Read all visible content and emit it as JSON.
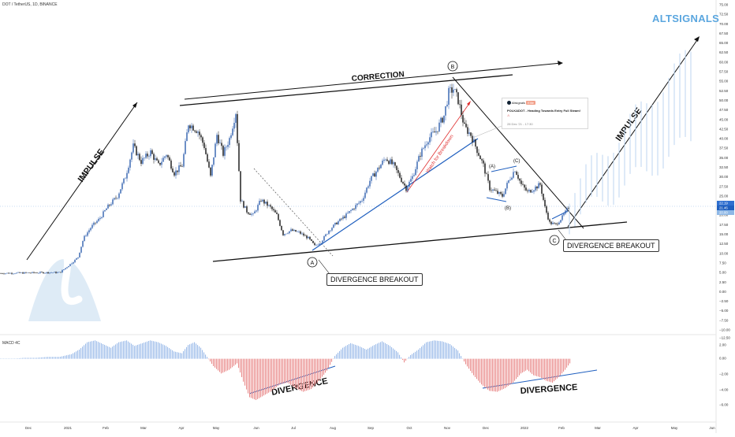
{
  "header": {
    "symbol_line": "DOT / TetherUS, 1D, BINANCE"
  },
  "brand": {
    "name": "ALTSIGNALS",
    "color": "#5aa6df"
  },
  "colors": {
    "up": "#2f5fae",
    "down": "#111111",
    "macd_pos": "#9bbbe9",
    "macd_neg": "#e98a8a",
    "annot_blue": "#1f5fbf",
    "annot_red": "#e03030",
    "watermark": "#c4dbf0"
  },
  "idea_card": {
    "author": "Altsignals",
    "badge": "Elite",
    "title": "POLKADOT - Heading Towards Entry Full Steam!",
    "date": "28 Dec '21 - 17:30"
  },
  "annotations": {
    "impulse_left": "IMPULSE",
    "impulse_right": "IMPULSE",
    "correction": "CORRECTION",
    "watch_for_breakdown": "Watch for Breakdown",
    "point_a": "A",
    "point_b": "B",
    "point_c": "C",
    "sub_a": "(A)",
    "sub_b": "(B)",
    "sub_c": "(C)",
    "divergence_breakout_1": "DIVERGENCE BREAKOUT",
    "divergence_breakout_2": "DIVERGENCE BREAKOUT",
    "divergence_1": "DIVERGENCE",
    "divergence_2": "DIVERGENCE"
  },
  "indicator": {
    "name": "MACD 4C"
  },
  "chart_data": {
    "type": "candlestick",
    "price_axis": {
      "ticks": [
        "75.00",
        "72.50",
        "70.00",
        "67.50",
        "65.00",
        "62.50",
        "60.00",
        "57.50",
        "55.00",
        "52.50",
        "50.00",
        "47.50",
        "45.00",
        "42.50",
        "40.00",
        "37.50",
        "35.00",
        "32.50",
        "30.00",
        "27.50",
        "25.00",
        "22.50",
        "20.00",
        "17.50",
        "15.00",
        "12.50",
        "10.00",
        "7.50",
        "5.00",
        "2.50",
        "0.00",
        "−2.50",
        "−5.00",
        "−7.50",
        "−10.00"
      ],
      "ylim": [
        -10,
        75
      ],
      "current_price_labels": [
        "22.19",
        "21.46",
        "20.00"
      ]
    },
    "macd_axis": {
      "ticks": [
        "−12.50",
        "2.00",
        "0.00",
        "−2.00",
        "−4.00",
        "−6.00"
      ],
      "ylim": [
        -6.3,
        2.2
      ]
    },
    "x_axis": {
      "ticks": [
        "Dec",
        "2021",
        "Feb",
        "Mar",
        "Apr",
        "May",
        "Jun",
        "Jul",
        "Aug",
        "Sep",
        "Oct",
        "Nov",
        "Dec",
        "2022",
        "Feb",
        "Mar",
        "Apr",
        "May",
        "Jun"
      ]
    },
    "price_series": [
      {
        "t": 0,
        "v": 4.8
      },
      {
        "t": 60,
        "v": 5.0
      },
      {
        "t": 75,
        "v": 5.0
      },
      {
        "t": 90,
        "v": 7.5
      },
      {
        "t": 98,
        "v": 9.0
      },
      {
        "t": 105,
        "v": 14.0
      },
      {
        "t": 115,
        "v": 17.0
      },
      {
        "t": 125,
        "v": 19.0
      },
      {
        "t": 135,
        "v": 22.0
      },
      {
        "t": 148,
        "v": 25.0
      },
      {
        "t": 158,
        "v": 30.0
      },
      {
        "t": 168,
        "v": 38.0
      },
      {
        "t": 178,
        "v": 34.0
      },
      {
        "t": 190,
        "v": 36.5
      },
      {
        "t": 200,
        "v": 33.0
      },
      {
        "t": 210,
        "v": 36.0
      },
      {
        "t": 220,
        "v": 31.0
      },
      {
        "t": 230,
        "v": 33.0
      },
      {
        "t": 238,
        "v": 44.0
      },
      {
        "t": 250,
        "v": 42.0
      },
      {
        "t": 258,
        "v": 38.0
      },
      {
        "t": 266,
        "v": 30.0
      },
      {
        "t": 274,
        "v": 41.0
      },
      {
        "t": 282,
        "v": 36.0
      },
      {
        "t": 290,
        "v": 40.0
      },
      {
        "t": 298,
        "v": 47.0
      },
      {
        "t": 304,
        "v": 24.0
      },
      {
        "t": 312,
        "v": 21.0
      },
      {
        "t": 320,
        "v": 20.0
      },
      {
        "t": 330,
        "v": 24.0
      },
      {
        "t": 342,
        "v": 22.0
      },
      {
        "t": 350,
        "v": 20.0
      },
      {
        "t": 358,
        "v": 15.0
      },
      {
        "t": 368,
        "v": 16.0
      },
      {
        "t": 378,
        "v": 15.5
      },
      {
        "t": 390,
        "v": 14.0
      },
      {
        "t": 398,
        "v": 12.0
      },
      {
        "t": 406,
        "v": 13.0
      },
      {
        "t": 416,
        "v": 16.0
      },
      {
        "t": 426,
        "v": 18.0
      },
      {
        "t": 438,
        "v": 20.0
      },
      {
        "t": 448,
        "v": 22.0
      },
      {
        "t": 458,
        "v": 24.0
      },
      {
        "t": 468,
        "v": 29.0
      },
      {
        "t": 478,
        "v": 32.0
      },
      {
        "t": 488,
        "v": 35.0
      },
      {
        "t": 498,
        "v": 33.0
      },
      {
        "t": 506,
        "v": 30.0
      },
      {
        "t": 514,
        "v": 27.0
      },
      {
        "t": 522,
        "v": 30.0
      },
      {
        "t": 532,
        "v": 36.0
      },
      {
        "t": 542,
        "v": 40.0
      },
      {
        "t": 552,
        "v": 42.0
      },
      {
        "t": 562,
        "v": 46.0
      },
      {
        "t": 568,
        "v": 52.0
      },
      {
        "t": 574,
        "v": 53.0
      },
      {
        "t": 580,
        "v": 50.0
      },
      {
        "t": 588,
        "v": 43.0
      },
      {
        "t": 596,
        "v": 41.0
      },
      {
        "t": 604,
        "v": 37.0
      },
      {
        "t": 612,
        "v": 33.0
      },
      {
        "t": 620,
        "v": 27.0
      },
      {
        "t": 628,
        "v": 26.0
      },
      {
        "t": 636,
        "v": 25.0
      },
      {
        "t": 644,
        "v": 29.0
      },
      {
        "t": 652,
        "v": 32.0
      },
      {
        "t": 660,
        "v": 28.0
      },
      {
        "t": 668,
        "v": 26.0
      },
      {
        "t": 676,
        "v": 27.0
      },
      {
        "t": 684,
        "v": 28.0
      },
      {
        "t": 690,
        "v": 22.0
      },
      {
        "t": 696,
        "v": 18.0
      },
      {
        "t": 704,
        "v": 17.5
      },
      {
        "t": 712,
        "v": 19.5
      },
      {
        "t": 720,
        "v": 22.0
      }
    ],
    "macd_series": [
      {
        "t": 0,
        "v": 0.0
      },
      {
        "t": 15,
        "v": 0.0
      },
      {
        "t": 30,
        "v": 0.1
      },
      {
        "t": 45,
        "v": 0.1
      },
      {
        "t": 60,
        "v": 0.2
      },
      {
        "t": 75,
        "v": 0.2
      },
      {
        "t": 90,
        "v": 0.5
      },
      {
        "t": 100,
        "v": 1.0
      },
      {
        "t": 110,
        "v": 1.8
      },
      {
        "t": 120,
        "v": 2.0
      },
      {
        "t": 130,
        "v": 1.6
      },
      {
        "t": 140,
        "v": 1.2
      },
      {
        "t": 150,
        "v": 1.8
      },
      {
        "t": 160,
        "v": 2.0
      },
      {
        "t": 170,
        "v": 1.4
      },
      {
        "t": 180,
        "v": 1.7
      },
      {
        "t": 190,
        "v": 2.0
      },
      {
        "t": 200,
        "v": 1.8
      },
      {
        "t": 210,
        "v": 1.4
      },
      {
        "t": 220,
        "v": 0.8
      },
      {
        "t": 230,
        "v": 0.6
      },
      {
        "t": 238,
        "v": 1.5
      },
      {
        "t": 246,
        "v": 1.8
      },
      {
        "t": 254,
        "v": 1.2
      },
      {
        "t": 262,
        "v": 0.2
      },
      {
        "t": 270,
        "v": -0.8
      },
      {
        "t": 280,
        "v": -1.6
      },
      {
        "t": 290,
        "v": -1.2
      },
      {
        "t": 300,
        "v": -0.5
      },
      {
        "t": 308,
        "v": -2.5
      },
      {
        "t": 316,
        "v": -4.2
      },
      {
        "t": 324,
        "v": -4.5
      },
      {
        "t": 334,
        "v": -4.0
      },
      {
        "t": 344,
        "v": -3.5
      },
      {
        "t": 354,
        "v": -2.8
      },
      {
        "t": 364,
        "v": -2.6
      },
      {
        "t": 374,
        "v": -3.2
      },
      {
        "t": 384,
        "v": -3.6
      },
      {
        "t": 394,
        "v": -3.3
      },
      {
        "t": 404,
        "v": -2.4
      },
      {
        "t": 414,
        "v": -1.3
      },
      {
        "t": 424,
        "v": 0.3
      },
      {
        "t": 434,
        "v": 1.2
      },
      {
        "t": 444,
        "v": 1.7
      },
      {
        "t": 454,
        "v": 1.4
      },
      {
        "t": 464,
        "v": 1.0
      },
      {
        "t": 474,
        "v": 1.5
      },
      {
        "t": 484,
        "v": 1.9
      },
      {
        "t": 494,
        "v": 1.4
      },
      {
        "t": 504,
        "v": 0.7
      },
      {
        "t": 512,
        "v": -0.4
      },
      {
        "t": 520,
        "v": 0.4
      },
      {
        "t": 530,
        "v": 1.0
      },
      {
        "t": 540,
        "v": 1.8
      },
      {
        "t": 550,
        "v": 2.0
      },
      {
        "t": 560,
        "v": 1.9
      },
      {
        "t": 570,
        "v": 1.6
      },
      {
        "t": 580,
        "v": 0.9
      },
      {
        "t": 590,
        "v": -0.6
      },
      {
        "t": 600,
        "v": -1.8
      },
      {
        "t": 610,
        "v": -2.8
      },
      {
        "t": 620,
        "v": -3.5
      },
      {
        "t": 630,
        "v": -3.6
      },
      {
        "t": 640,
        "v": -3.2
      },
      {
        "t": 650,
        "v": -2.6
      },
      {
        "t": 660,
        "v": -1.6
      },
      {
        "t": 668,
        "v": -1.2
      },
      {
        "t": 676,
        "v": -1.8
      },
      {
        "t": 684,
        "v": -2.0
      },
      {
        "t": 692,
        "v": -2.4
      },
      {
        "t": 700,
        "v": -2.6
      },
      {
        "t": 708,
        "v": -2.0
      },
      {
        "t": 716,
        "v": -1.2
      },
      {
        "t": 722,
        "v": -0.5
      }
    ],
    "grid": false
  }
}
